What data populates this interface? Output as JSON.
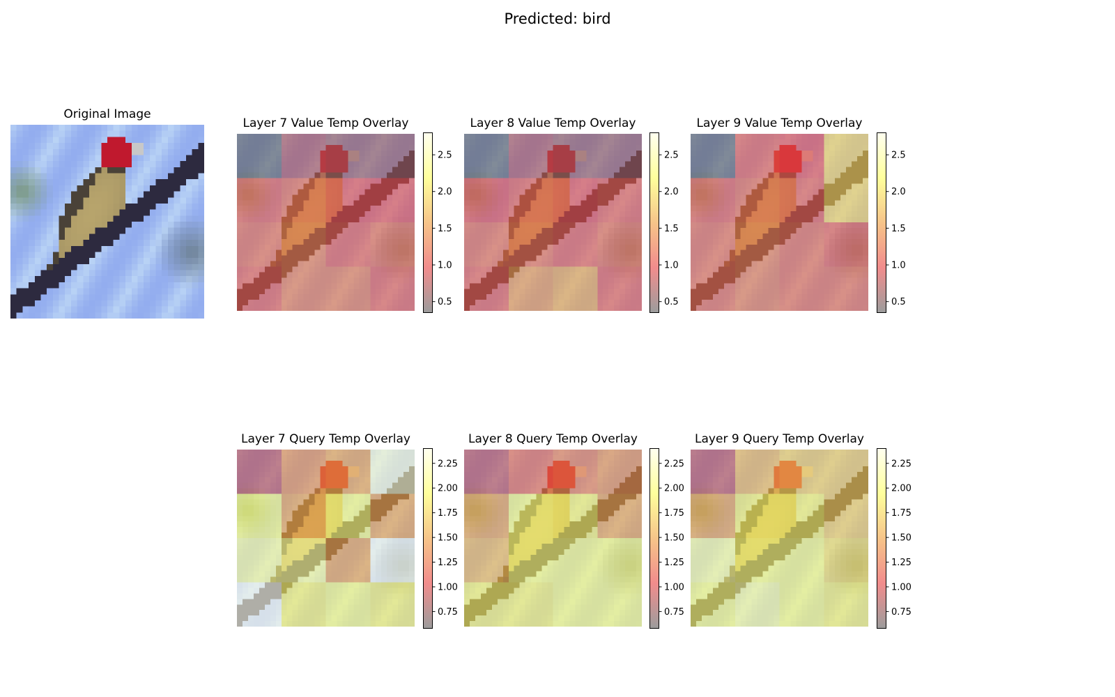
{
  "figure": {
    "suptitle": "Predicted: bird"
  },
  "colors": {
    "sky_light": "#b9d3f5",
    "sky_blue": "#8fa9ee",
    "branch": "#2d2a3f",
    "bird_body": "#b7a46c",
    "bird_dark": "#4a4238",
    "bird_head": "#c0192e",
    "cmap_stops": [
      "#606060",
      "#e84646",
      "#f0a040",
      "#ffff60",
      "#ffffe6"
    ]
  },
  "original_image": {
    "title": "Original Image",
    "grid": [
      32,
      32
    ]
  },
  "chart_data": [
    {
      "type": "heatmap",
      "title": "Layer 7 Value Temp Overlay",
      "grid": [
        4,
        4
      ],
      "values": [
        [
          0.3,
          0.7,
          0.6,
          0.6
        ],
        [
          1.1,
          1.2,
          1.0,
          1.0
        ],
        [
          1.2,
          1.3,
          1.1,
          1.2
        ],
        [
          1.1,
          1.3,
          1.3,
          1.1
        ]
      ],
      "colorbar": {
        "range": [
          0.35,
          2.8
        ],
        "ticks": [
          0.5,
          1.0,
          1.5,
          2.0,
          2.5
        ],
        "tick_labels": [
          "0.5",
          "1.0",
          "1.5",
          "2.0",
          "2.5"
        ]
      }
    },
    {
      "type": "heatmap",
      "title": "Layer 8 Value Temp Overlay",
      "grid": [
        4,
        4
      ],
      "values": [
        [
          0.3,
          0.7,
          0.6,
          0.6
        ],
        [
          1.0,
          1.1,
          1.0,
          1.1
        ],
        [
          1.2,
          1.2,
          1.1,
          1.2
        ],
        [
          1.1,
          1.5,
          1.6,
          1.1
        ]
      ],
      "colorbar": {
        "range": [
          0.35,
          2.8
        ],
        "ticks": [
          0.5,
          1.0,
          1.5,
          2.0,
          2.5
        ],
        "tick_labels": [
          "0.5",
          "1.0",
          "1.5",
          "2.0",
          "2.5"
        ]
      }
    },
    {
      "type": "heatmap",
      "title": "Layer 9 Value Temp Overlay",
      "grid": [
        4,
        4
      ],
      "values": [
        [
          0.3,
          1.1,
          1.0,
          1.9
        ],
        [
          1.1,
          1.2,
          1.1,
          1.9
        ],
        [
          1.2,
          1.3,
          1.2,
          1.1
        ],
        [
          1.2,
          1.3,
          1.2,
          1.2
        ]
      ],
      "colorbar": {
        "range": [
          0.35,
          2.8
        ],
        "ticks": [
          0.5,
          1.0,
          1.5,
          2.0,
          2.5
        ],
        "tick_labels": [
          "0.5",
          "1.0",
          "1.5",
          "2.0",
          "2.5"
        ]
      }
    },
    {
      "type": "heatmap",
      "title": "Layer 7 Query Temp Overlay",
      "grid": [
        4,
        4
      ],
      "values": [
        [
          0.9,
          1.4,
          1.5,
          2.3
        ],
        [
          2.0,
          1.5,
          2.0,
          1.5
        ],
        [
          2.1,
          2.1,
          1.5,
          2.4
        ],
        [
          2.4,
          1.9,
          2.0,
          1.9
        ]
      ],
      "colorbar": {
        "range": [
          0.58,
          2.4
        ],
        "ticks": [
          0.75,
          1.0,
          1.25,
          1.5,
          1.75,
          2.0,
          2.25
        ],
        "tick_labels": [
          "0.75",
          "1.00",
          "1.25",
          "1.50",
          "1.75",
          "2.00",
          "2.25"
        ]
      }
    },
    {
      "type": "heatmap",
      "title": "Layer 8 Query Temp Overlay",
      "grid": [
        4,
        4
      ],
      "values": [
        [
          0.9,
          1.2,
          1.3,
          1.4
        ],
        [
          1.5,
          2.0,
          1.9,
          1.5
        ],
        [
          1.6,
          2.0,
          2.0,
          2.0
        ],
        [
          1.9,
          1.9,
          2.0,
          2.0
        ]
      ],
      "colorbar": {
        "range": [
          0.58,
          2.4
        ],
        "ticks": [
          0.75,
          1.0,
          1.25,
          1.5,
          1.75,
          2.0,
          2.25
        ],
        "tick_labels": [
          "0.75",
          "1.00",
          "1.25",
          "1.50",
          "1.75",
          "2.00",
          "2.25"
        ]
      }
    },
    {
      "type": "heatmap",
      "title": "Layer 9 Query Temp Overlay",
      "grid": [
        4,
        4
      ],
      "values": [
        [
          0.9,
          1.6,
          1.7,
          1.7
        ],
        [
          1.5,
          1.9,
          1.9,
          1.7
        ],
        [
          2.1,
          2.0,
          2.0,
          1.8
        ],
        [
          2.0,
          2.1,
          2.0,
          1.9
        ]
      ],
      "colorbar": {
        "range": [
          0.58,
          2.4
        ],
        "ticks": [
          0.75,
          1.0,
          1.25,
          1.5,
          1.75,
          2.0,
          2.25
        ],
        "tick_labels": [
          "0.75",
          "1.00",
          "1.25",
          "1.50",
          "1.75",
          "2.00",
          "2.25"
        ]
      }
    }
  ]
}
